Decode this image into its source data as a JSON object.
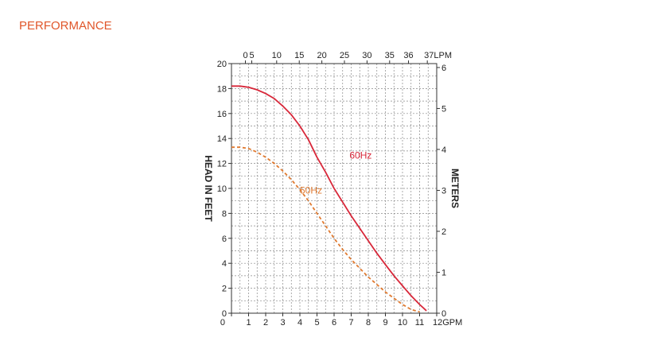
{
  "page": {
    "section_title": "PERFORMANCE"
  },
  "chart_data": {
    "type": "line",
    "x_bottom": {
      "label": "GPM",
      "ticks": [
        0,
        1,
        2,
        3,
        4,
        5,
        6,
        7,
        8,
        9,
        10,
        11,
        12
      ],
      "range": [
        0,
        12
      ]
    },
    "x_top": {
      "label": "LPM",
      "ticks": [
        0,
        5,
        10,
        15,
        20,
        25,
        30,
        35,
        36,
        37
      ]
    },
    "y_left": {
      "label": "HEAD IN FEET",
      "ticks": [
        0,
        2,
        4,
        6,
        8,
        10,
        12,
        14,
        16,
        18,
        20
      ],
      "range": [
        0,
        20
      ]
    },
    "y_right": {
      "label": "METERS",
      "ticks": [
        0,
        1,
        2,
        3,
        4,
        5,
        6
      ]
    },
    "grid": true,
    "series": [
      {
        "name": "60Hz",
        "color": "#d8283a",
        "style": "solid",
        "x": [
          0,
          0.5,
          1,
          1.5,
          2,
          2.5,
          3,
          3.5,
          4,
          4.5,
          5,
          5.5,
          6,
          6.5,
          7,
          7.5,
          8,
          8.5,
          9,
          9.5,
          10,
          10.5,
          11,
          11.4
        ],
        "y": [
          18.2,
          18.2,
          18.1,
          17.9,
          17.6,
          17.2,
          16.6,
          15.9,
          15.0,
          13.9,
          12.5,
          11.3,
          10.0,
          8.9,
          7.8,
          6.8,
          5.8,
          4.8,
          3.9,
          3.0,
          2.2,
          1.4,
          0.7,
          0.2
        ]
      },
      {
        "name": "50Hz",
        "color": "#e07a30",
        "style": "dashed",
        "x": [
          0,
          0.5,
          1,
          1.5,
          2,
          2.5,
          3,
          3.5,
          4,
          4.5,
          5,
          5.5,
          6,
          6.5,
          7,
          7.5,
          8,
          8.5,
          9,
          9.5,
          10,
          10.5,
          11
        ],
        "y": [
          13.3,
          13.3,
          13.2,
          12.9,
          12.5,
          12.0,
          11.4,
          10.7,
          9.9,
          9.0,
          8.0,
          7.0,
          6.0,
          5.1,
          4.3,
          3.6,
          2.9,
          2.3,
          1.7,
          1.2,
          0.7,
          0.3,
          0.1
        ]
      }
    ],
    "annotations": [
      {
        "text": "60Hz",
        "x": 6.9,
        "y": 12.4,
        "color": "#d8283a"
      },
      {
        "text": "50Hz",
        "x": 4.0,
        "y": 9.6,
        "color": "#e07a30"
      }
    ]
  }
}
